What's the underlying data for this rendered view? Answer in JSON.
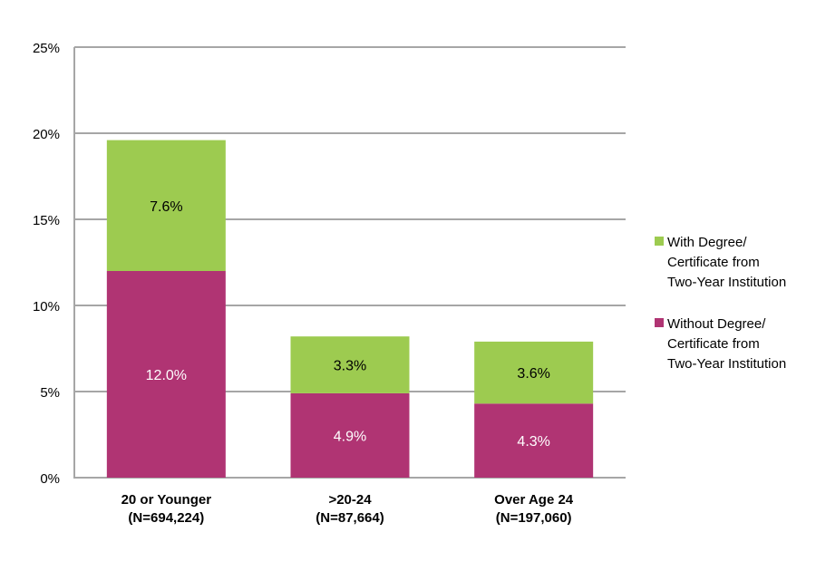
{
  "chart_data": {
    "type": "bar",
    "stacked": true,
    "categories": [
      [
        "20 or Younger",
        "(N=694,224)"
      ],
      [
        ">20-24",
        "(N=87,664)"
      ],
      [
        "Over Age 24",
        "(N=197,060)"
      ]
    ],
    "series": [
      {
        "name": [
          "Without Degree/",
          "Certificate from",
          "Two-Year Institution"
        ],
        "values": [
          12.0,
          4.9,
          4.3
        ],
        "labels": [
          "12.0%",
          "4.9%",
          "4.3%"
        ],
        "color": "#B03473"
      },
      {
        "name": [
          "With Degree/",
          "Certificate from",
          "Two-Year Institution"
        ],
        "values": [
          7.6,
          3.3,
          3.6
        ],
        "labels": [
          "7.6%",
          "3.3%",
          "3.6%"
        ],
        "color": "#9DCB50"
      }
    ],
    "yticks": [
      "0%",
      "5%",
      "10%",
      "15%",
      "20%",
      "25%"
    ],
    "ylim": [
      0,
      25
    ],
    "grid": true,
    "legend": "right"
  }
}
